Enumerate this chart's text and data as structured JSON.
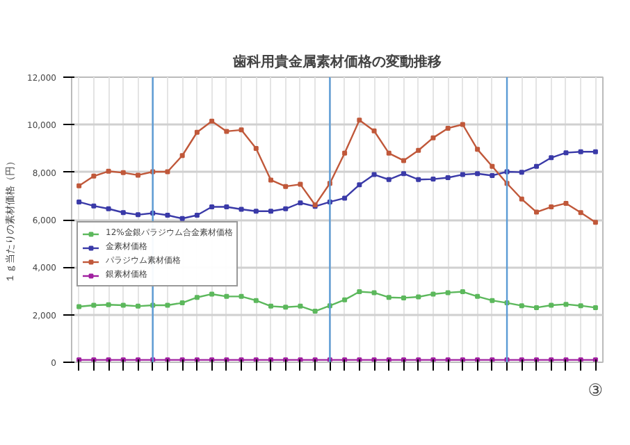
{
  "chart_data": {
    "type": "line",
    "title": "歯科用貴金属素材価格の変動推移",
    "ylabel": "１ｇ当たりの素材価格（円）",
    "categories": [
      null,
      null,
      null,
      null,
      null,
      null,
      null,
      null,
      null,
      null,
      null,
      null,
      null,
      null,
      null,
      null,
      null,
      null,
      null,
      null,
      null,
      null,
      null,
      null,
      null,
      null,
      null,
      null,
      null,
      null,
      null,
      null,
      null,
      null,
      null,
      null
    ],
    "series": [
      {
        "name": "12%金銀パラジウム合金素材価格",
        "color": "#5cb85c",
        "values": [
          2340,
          2400,
          2420,
          2400,
          2360,
          2400,
          2400,
          2500,
          2730,
          2870,
          2770,
          2770,
          2600,
          2360,
          2320,
          2360,
          2150,
          2380,
          2630,
          2970,
          2930,
          2730,
          2710,
          2750,
          2870,
          2930,
          2970,
          2770,
          2600,
          2500,
          2380,
          2300,
          2400,
          2440,
          2380,
          2300
        ]
      },
      {
        "name": "金素材価格",
        "color": "#3a3aa8",
        "values": [
          6750,
          6580,
          6460,
          6300,
          6210,
          6280,
          6190,
          6050,
          6190,
          6540,
          6540,
          6440,
          6360,
          6360,
          6460,
          6710,
          6560,
          6750,
          6910,
          7470,
          7900,
          7690,
          7940,
          7690,
          7710,
          7770,
          7900,
          7940,
          7860,
          8020,
          8000,
          8245,
          8610,
          8820,
          8860,
          8860
        ]
      },
      {
        "name": "パラジウム素材価格",
        "color": "#c0583a",
        "values": [
          7425,
          7835,
          8040,
          7980,
          7875,
          8020,
          8020,
          8700,
          9680,
          10150,
          9720,
          9780,
          9000,
          7670,
          7400,
          7490,
          6620,
          7530,
          8800,
          10190,
          9740,
          8800,
          8490,
          8920,
          9450,
          9850,
          10010,
          8960,
          8245,
          7530,
          6870,
          6320,
          6540,
          6690,
          6300,
          5890
        ]
      },
      {
        "name": "銀素材価格",
        "color": "#a020a0",
        "values": [
          100,
          100,
          100,
          100,
          100,
          100,
          100,
          100,
          100,
          100,
          100,
          100,
          100,
          100,
          100,
          100,
          100,
          100,
          100,
          100,
          100,
          100,
          100,
          100,
          100,
          100,
          100,
          100,
          100,
          100,
          100,
          100,
          100,
          100,
          100,
          100
        ]
      }
    ],
    "ylim": [
      0,
      12000
    ],
    "yticks": [
      {
        "value": 0,
        "label": "0"
      },
      {
        "value": 2000,
        "label": "2,000"
      },
      {
        "value": 4000,
        "label": "4,000"
      },
      {
        "value": 6000,
        "label": "6,000"
      },
      {
        "value": 8000,
        "label": "8,000"
      },
      {
        "value": 10000,
        "label": "10,000"
      },
      {
        "value": 12000,
        "label": "12,000"
      }
    ],
    "grid": true,
    "legend": "left",
    "marker": "square",
    "line_style": "solid",
    "annotations": [
      "③"
    ]
  }
}
